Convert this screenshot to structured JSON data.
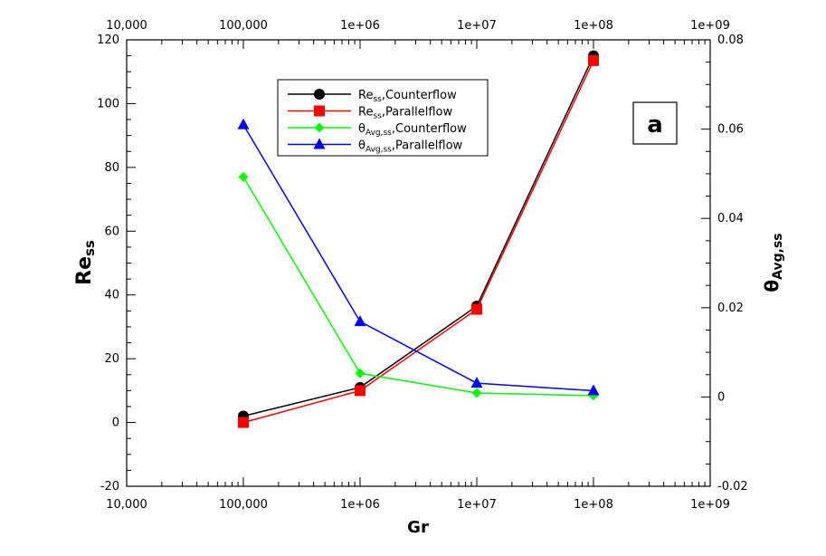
{
  "chart_data": {
    "type": "line",
    "xscale": "log",
    "xlim": [
      10000,
      1000000000
    ],
    "x_tick_labels": [
      "10,000",
      "100,000",
      "1e+06",
      "1e+07",
      "1e+08",
      "1e+09"
    ],
    "ylim_left": [
      -20,
      120
    ],
    "y_ticks_left": [
      "-20",
      "0",
      "20",
      "40",
      "60",
      "80",
      "100",
      "120"
    ],
    "ylim_right": [
      -0.02,
      0.08
    ],
    "y_ticks_right": [
      "-0.02",
      "0",
      "0.02",
      "0.04",
      "0.06",
      "0.08"
    ],
    "xlabel": "Gr",
    "ylabel_left": {
      "main": "Re",
      "sub": "ss"
    },
    "ylabel_right": {
      "main": "θ",
      "sub": "Avg,ss"
    },
    "panel_label": "a",
    "legend_position": "top-center",
    "grid": false,
    "series": [
      {
        "legend_main": "Re",
        "legend_sub": "ss",
        "legend_rest": ",Counterflow",
        "axis": "left",
        "color": "#000000",
        "marker": "circle",
        "x": [
          100000,
          1000000,
          10000000,
          100000000
        ],
        "y": [
          2,
          11,
          36.5,
          115
        ]
      },
      {
        "legend_main": "Re",
        "legend_sub": "ss",
        "legend_rest": ",Parallelflow",
        "axis": "left",
        "color": "#ff0000",
        "marker": "square",
        "x": [
          100000,
          1000000,
          10000000,
          100000000
        ],
        "y": [
          0,
          10,
          35.5,
          113.5
        ]
      },
      {
        "legend_main": "θ",
        "legend_sub": "Avg,ss",
        "legend_rest": ",Counterflow",
        "axis": "right",
        "color": "#00ff00",
        "marker": "diamond",
        "x": [
          100000,
          1000000,
          10000000,
          100000000
        ],
        "y": [
          0.0493,
          0.0053,
          0.0009,
          0.0003
        ]
      },
      {
        "legend_main": "θ",
        "legend_sub": "Avg,ss",
        "legend_rest": ",Parallelflow",
        "axis": "right",
        "color": "#0000ff",
        "marker": "triangle",
        "x": [
          100000,
          1000000,
          10000000,
          100000000
        ],
        "y": [
          0.061,
          0.0169,
          0.0031,
          0.0014
        ]
      }
    ]
  }
}
